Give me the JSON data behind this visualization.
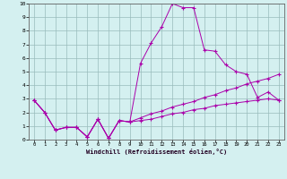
{
  "title": "",
  "xlabel": "Windchill (Refroidissement éolien,°C)",
  "ylabel": "",
  "background_color": "#d4f0f0",
  "line_color": "#aa00aa",
  "grid_color": "#99bbbb",
  "xlim": [
    -0.5,
    23.5
  ],
  "ylim": [
    0,
    10
  ],
  "xticks": [
    0,
    1,
    2,
    3,
    4,
    5,
    6,
    7,
    8,
    9,
    10,
    11,
    12,
    13,
    14,
    15,
    16,
    17,
    18,
    19,
    20,
    21,
    22,
    23
  ],
  "yticks": [
    0,
    1,
    2,
    3,
    4,
    5,
    6,
    7,
    8,
    9,
    10
  ],
  "lines": [
    {
      "x": [
        0,
        1,
        2,
        3,
        4,
        5,
        6,
        7,
        8,
        9,
        10,
        11,
        12,
        13,
        14,
        15,
        16,
        17,
        18,
        19,
        20,
        21,
        22,
        23
      ],
      "y": [
        2.9,
        2.0,
        0.7,
        0.9,
        0.9,
        0.2,
        1.5,
        0.1,
        1.4,
        1.3,
        5.6,
        7.1,
        8.3,
        10.0,
        9.7,
        9.7,
        6.6,
        6.5,
        5.5,
        5.0,
        4.8,
        3.1,
        3.5,
        2.9
      ]
    },
    {
      "x": [
        0,
        1,
        2,
        3,
        4,
        5,
        6,
        7,
        8,
        9,
        10,
        11,
        12,
        13,
        14,
        15,
        16,
        17,
        18,
        19,
        20,
        21,
        22,
        23
      ],
      "y": [
        2.9,
        2.0,
        0.7,
        0.9,
        0.9,
        0.2,
        1.5,
        0.1,
        1.4,
        1.3,
        1.6,
        1.9,
        2.1,
        2.4,
        2.6,
        2.8,
        3.1,
        3.3,
        3.6,
        3.8,
        4.1,
        4.3,
        4.5,
        4.8
      ]
    },
    {
      "x": [
        0,
        1,
        2,
        3,
        4,
        5,
        6,
        7,
        8,
        9,
        10,
        11,
        12,
        13,
        14,
        15,
        16,
        17,
        18,
        19,
        20,
        21,
        22,
        23
      ],
      "y": [
        2.9,
        2.0,
        0.7,
        0.9,
        0.9,
        0.2,
        1.5,
        0.1,
        1.4,
        1.3,
        1.4,
        1.5,
        1.7,
        1.9,
        2.0,
        2.2,
        2.3,
        2.5,
        2.6,
        2.7,
        2.8,
        2.9,
        3.0,
        2.9
      ]
    }
  ]
}
